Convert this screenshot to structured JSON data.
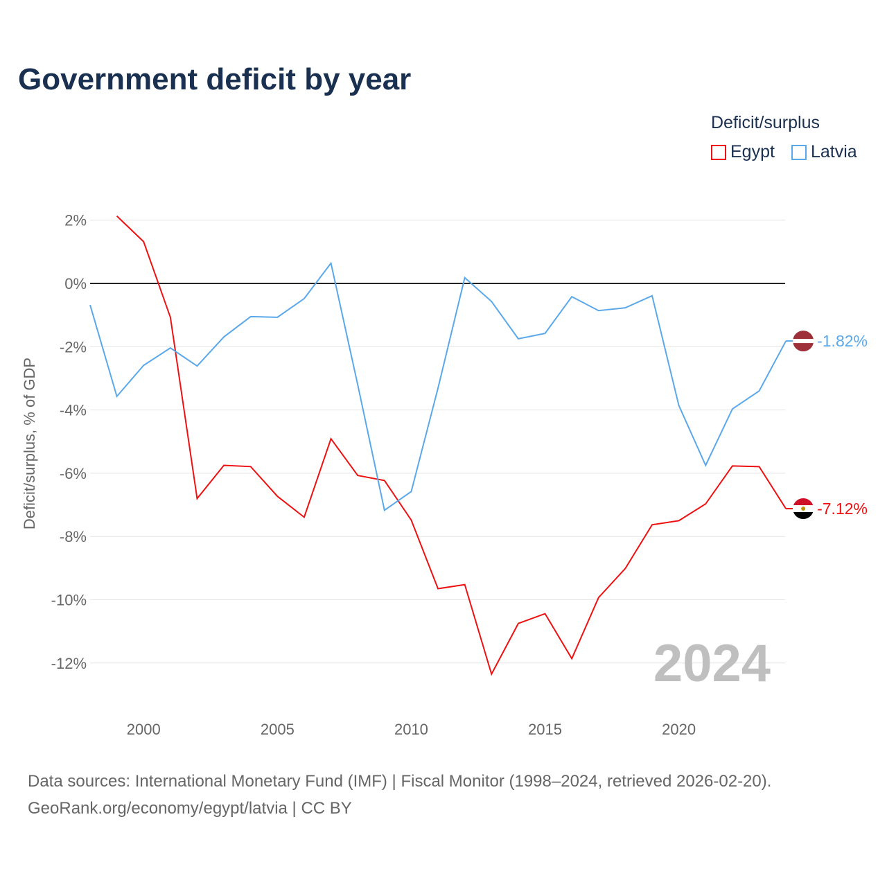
{
  "chart_data": {
    "type": "line",
    "title": "Government deficit by year",
    "ylabel": "Deficit/surplus, % of GDP",
    "xlabel": "",
    "ylim": [
      -13.2,
      2.4
    ],
    "xlim": [
      1998,
      2024
    ],
    "yticks": [
      2,
      0,
      -2,
      -4,
      -6,
      -8,
      -10,
      -12
    ],
    "ytick_labels": [
      "2%",
      "0%",
      "-2%",
      "-4%",
      "-6%",
      "-8%",
      "-10%",
      "-12%"
    ],
    "xticks": [
      2000,
      2005,
      2010,
      2015,
      2020
    ],
    "xtick_labels": [
      "2000",
      "2005",
      "2010",
      "2015",
      "2020"
    ],
    "legend_title": "Deficit/surplus",
    "legend_position": "top-right",
    "watermark_year": "2024",
    "series": [
      {
        "name": "Egypt",
        "color": "#ee1111",
        "end_label": "-7.12%",
        "x": [
          1999,
          2000,
          2001,
          2002,
          2003,
          2004,
          2005,
          2006,
          2007,
          2008,
          2009,
          2010,
          2011,
          2012,
          2013,
          2014,
          2015,
          2016,
          2017,
          2018,
          2019,
          2020,
          2021,
          2022,
          2023,
          2024
        ],
        "values": [
          2.13,
          1.32,
          -1.07,
          -6.8,
          -5.75,
          -5.79,
          -6.73,
          -7.39,
          -4.91,
          -6.07,
          -6.23,
          -7.48,
          -9.65,
          -9.52,
          -12.35,
          -10.75,
          -10.44,
          -11.86,
          -9.93,
          -9.01,
          -7.63,
          -7.5,
          -6.97,
          -5.77,
          -5.79,
          -7.12
        ]
      },
      {
        "name": "Latvia",
        "color": "#5aa8ea",
        "end_label": "-1.82%",
        "x": [
          1998,
          1999,
          2000,
          2001,
          2002,
          2003,
          2004,
          2005,
          2006,
          2007,
          2008,
          2009,
          2010,
          2011,
          2012,
          2013,
          2014,
          2015,
          2016,
          2017,
          2018,
          2019,
          2020,
          2021,
          2022,
          2023,
          2024
        ],
        "values": [
          -0.68,
          -3.57,
          -2.59,
          -2.04,
          -2.61,
          -1.69,
          -1.05,
          -1.07,
          -0.48,
          0.64,
          -3.2,
          -7.17,
          -6.58,
          -3.31,
          0.18,
          -0.57,
          -1.75,
          -1.58,
          -0.42,
          -0.86,
          -0.77,
          -0.39,
          -3.86,
          -5.75,
          -3.97,
          -3.4,
          -1.82
        ]
      }
    ]
  },
  "footer": {
    "line1": "Data sources: International Monetary Fund (IMF) | Fiscal Monitor (1998–2024, retrieved 2026-02-20).",
    "line2": "GeoRank.org/economy/egypt/latvia | CC BY"
  }
}
